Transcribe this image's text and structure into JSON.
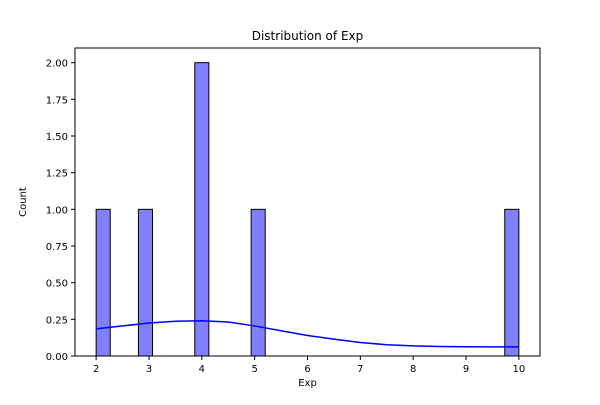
{
  "chart_data": {
    "type": "bar",
    "title": "Distribution of Exp",
    "xlabel": "Exp",
    "ylabel": "Count",
    "xlim": [
      1.6,
      10.4
    ],
    "ylim": [
      0,
      2.1
    ],
    "x_ticks": [
      2,
      3,
      4,
      5,
      6,
      7,
      8,
      9,
      10
    ],
    "y_ticks": [
      0.0,
      0.25,
      0.5,
      0.75,
      1.0,
      1.25,
      1.5,
      1.75,
      2.0
    ],
    "y_tick_labels": [
      "0.00",
      "0.25",
      "0.50",
      "0.75",
      "1.00",
      "1.25",
      "1.50",
      "1.75",
      "2.00"
    ],
    "bins": [
      {
        "x0": 2.0,
        "x1": 2.2667,
        "count": 1
      },
      {
        "x0": 2.8,
        "x1": 3.0667,
        "count": 1
      },
      {
        "x0": 3.8667,
        "x1": 4.1333,
        "count": 2
      },
      {
        "x0": 4.9333,
        "x1": 5.2,
        "count": 1
      },
      {
        "x0": 9.7333,
        "x1": 10.0,
        "count": 1
      }
    ],
    "kde": {
      "x": [
        2.0,
        2.5,
        3.0,
        3.5,
        4.0,
        4.5,
        5.0,
        5.5,
        6.0,
        6.5,
        7.0,
        7.5,
        8.0,
        8.5,
        9.0,
        9.5,
        10.0
      ],
      "y": [
        0.185,
        0.205,
        0.225,
        0.237,
        0.24,
        0.232,
        0.205,
        0.172,
        0.14,
        0.115,
        0.092,
        0.077,
        0.069,
        0.065,
        0.063,
        0.062,
        0.062
      ]
    },
    "colors": {
      "bar_fill": "#8080ff",
      "bar_stroke": "#000000",
      "kde_line": "#0000ff"
    },
    "grid": false,
    "legend": "none"
  }
}
